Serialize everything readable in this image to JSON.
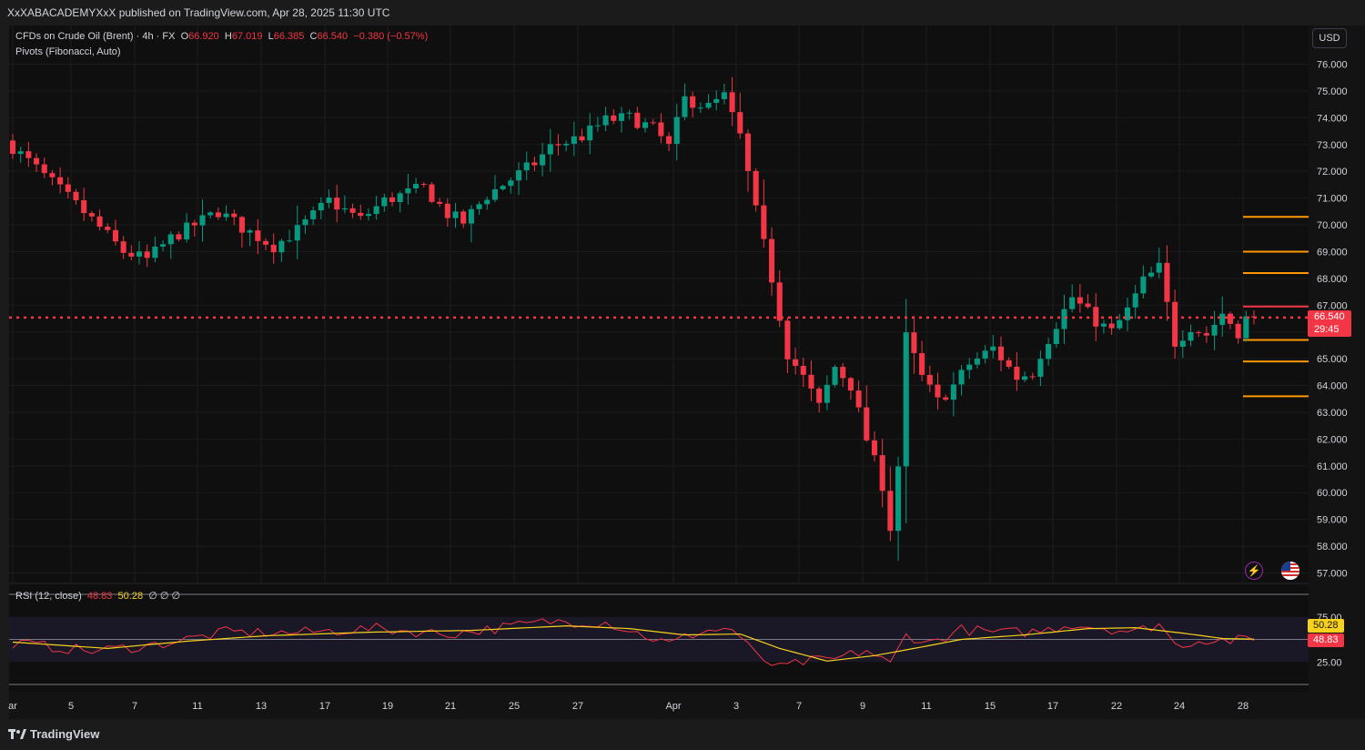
{
  "header": {
    "published": "XxXABACADEMYXxX published on TradingView.com, Apr 28, 2025 11:30 UTC"
  },
  "legend": {
    "symbol": "CFDs on Crude Oil (Brent) · 4h · FX",
    "open_label": "O",
    "open": "66.920",
    "high_label": "H",
    "high": "67.019",
    "low_label": "L",
    "low": "66.385",
    "close_label": "C",
    "close": "66.540",
    "change": "−0.380 (−0.57%)",
    "pivots": "Pivots (Fibonacci, Auto)"
  },
  "rsi_legend": {
    "name": "RSI (12, close)",
    "rsi_value": "48.83",
    "ma_value": "50.28",
    "extra": "∅  ∅  ∅"
  },
  "currency_button": "USD",
  "price_badge": {
    "price": "66.540",
    "countdown": "29:45"
  },
  "rsi_badges": {
    "ma": "50.28",
    "rsi": "48.83"
  },
  "footer": {
    "logo_text": "TradingView"
  },
  "icons": {
    "flash": "flash-icon",
    "flag": "us-flag-icon",
    "logo": "tradingview-logo-icon"
  },
  "colors": {
    "up": "#089981",
    "down": "#f23645",
    "pivot": "#ff9800",
    "rsi": "#f23645",
    "rsi_ma": "#f7d21c",
    "background": "#0f0f0f"
  },
  "chart_data": {
    "type": "candlestick",
    "timeframe": "4h",
    "y_axis": {
      "min": 57,
      "max": 76,
      "ticks": [
        "76.000",
        "75.000",
        "74.000",
        "73.000",
        "72.000",
        "71.000",
        "70.000",
        "69.000",
        "68.000",
        "67.000",
        "66.000",
        "65.000",
        "64.000",
        "63.000",
        "62.000",
        "61.000",
        "60.000",
        "59.000",
        "58.000",
        "57.000"
      ]
    },
    "x_ticks": [
      "ar",
      "5",
      "7",
      "11",
      "13",
      "17",
      "19",
      "21",
      "25",
      "27",
      "Apr",
      "3",
      "7",
      "9",
      "11",
      "15",
      "17",
      "22",
      "24",
      "28"
    ],
    "last_price": 66.54,
    "pivot_levels": [
      70.3,
      69.0,
      68.2,
      65.7,
      64.9,
      63.6
    ],
    "close_path": [
      [
        0,
        72.9
      ],
      [
        6,
        71.3
      ],
      [
        10,
        70.2
      ],
      [
        14,
        69.0
      ],
      [
        17,
        68.7
      ],
      [
        20,
        69.5
      ],
      [
        26,
        70.5
      ],
      [
        29,
        69.9
      ],
      [
        33,
        69.2
      ],
      [
        36,
        69.8
      ],
      [
        40,
        70.9
      ],
      [
        44,
        70.2
      ],
      [
        47,
        70.9
      ],
      [
        52,
        71.4
      ],
      [
        55,
        70.4
      ],
      [
        57,
        70.1
      ],
      [
        60,
        71.1
      ],
      [
        66,
        72.3
      ],
      [
        68,
        72.9
      ],
      [
        72,
        73.3
      ],
      [
        75,
        73.9
      ],
      [
        78,
        74.0
      ],
      [
        81,
        73.6
      ],
      [
        83,
        72.9
      ],
      [
        85,
        74.7
      ],
      [
        88,
        74.4
      ],
      [
        90,
        74.8
      ],
      [
        92,
        73.3
      ],
      [
        94,
        70.5
      ],
      [
        96,
        68.0
      ],
      [
        98,
        65.2
      ],
      [
        100,
        64.3
      ],
      [
        102,
        63.2
      ],
      [
        104,
        64.7
      ],
      [
        106,
        64.0
      ],
      [
        108,
        62.0
      ],
      [
        110,
        60.3
      ],
      [
        111,
        58.7
      ],
      [
        112,
        61.0
      ],
      [
        113,
        65.8
      ],
      [
        115,
        64.3
      ],
      [
        117,
        63.4
      ],
      [
        119,
        64.0
      ],
      [
        121,
        64.8
      ],
      [
        124,
        65.4
      ],
      [
        127,
        64.3
      ],
      [
        129,
        64.5
      ],
      [
        130,
        65.2
      ],
      [
        132,
        66.3
      ],
      [
        134,
        67.3
      ],
      [
        137,
        66.4
      ],
      [
        139,
        66.0
      ],
      [
        141,
        66.8
      ],
      [
        143,
        67.9
      ],
      [
        145,
        68.4
      ],
      [
        147,
        65.6
      ],
      [
        149,
        66.2
      ],
      [
        151,
        65.9
      ],
      [
        153,
        66.7
      ],
      [
        155,
        66.0
      ],
      [
        156,
        66.5
      ],
      [
        157,
        66.54
      ]
    ],
    "rsi": {
      "length": 12,
      "source": "close",
      "levels": [
        75,
        25
      ],
      "last_rsi": 48.83,
      "last_ma": 50.28
    },
    "rsi_path": [
      [
        0,
        46
      ],
      [
        10,
        37
      ],
      [
        18,
        44
      ],
      [
        27,
        58
      ],
      [
        35,
        57
      ],
      [
        46,
        62
      ],
      [
        55,
        56
      ],
      [
        60,
        61
      ],
      [
        68,
        70
      ],
      [
        75,
        69
      ],
      [
        83,
        45
      ],
      [
        87,
        59
      ],
      [
        91,
        62
      ],
      [
        94,
        32
      ],
      [
        97,
        18
      ],
      [
        100,
        25
      ],
      [
        104,
        28
      ],
      [
        108,
        38
      ],
      [
        111,
        22
      ],
      [
        113,
        55
      ],
      [
        116,
        46
      ],
      [
        120,
        61
      ],
      [
        125,
        57
      ],
      [
        130,
        59
      ],
      [
        134,
        67
      ],
      [
        138,
        63
      ],
      [
        142,
        58
      ],
      [
        145,
        68
      ],
      [
        147,
        44
      ],
      [
        151,
        50
      ],
      [
        154,
        49
      ],
      [
        157,
        48.83
      ]
    ],
    "rsi_ma_path": [
      [
        0,
        47
      ],
      [
        12,
        40
      ],
      [
        22,
        48
      ],
      [
        32,
        54
      ],
      [
        45,
        58
      ],
      [
        58,
        60
      ],
      [
        70,
        65
      ],
      [
        78,
        62
      ],
      [
        85,
        55
      ],
      [
        92,
        56
      ],
      [
        97,
        40
      ],
      [
        103,
        26
      ],
      [
        109,
        32
      ],
      [
        114,
        40
      ],
      [
        120,
        50
      ],
      [
        128,
        55
      ],
      [
        136,
        62
      ],
      [
        142,
        63
      ],
      [
        148,
        57
      ],
      [
        153,
        51
      ],
      [
        157,
        50.28
      ]
    ]
  }
}
